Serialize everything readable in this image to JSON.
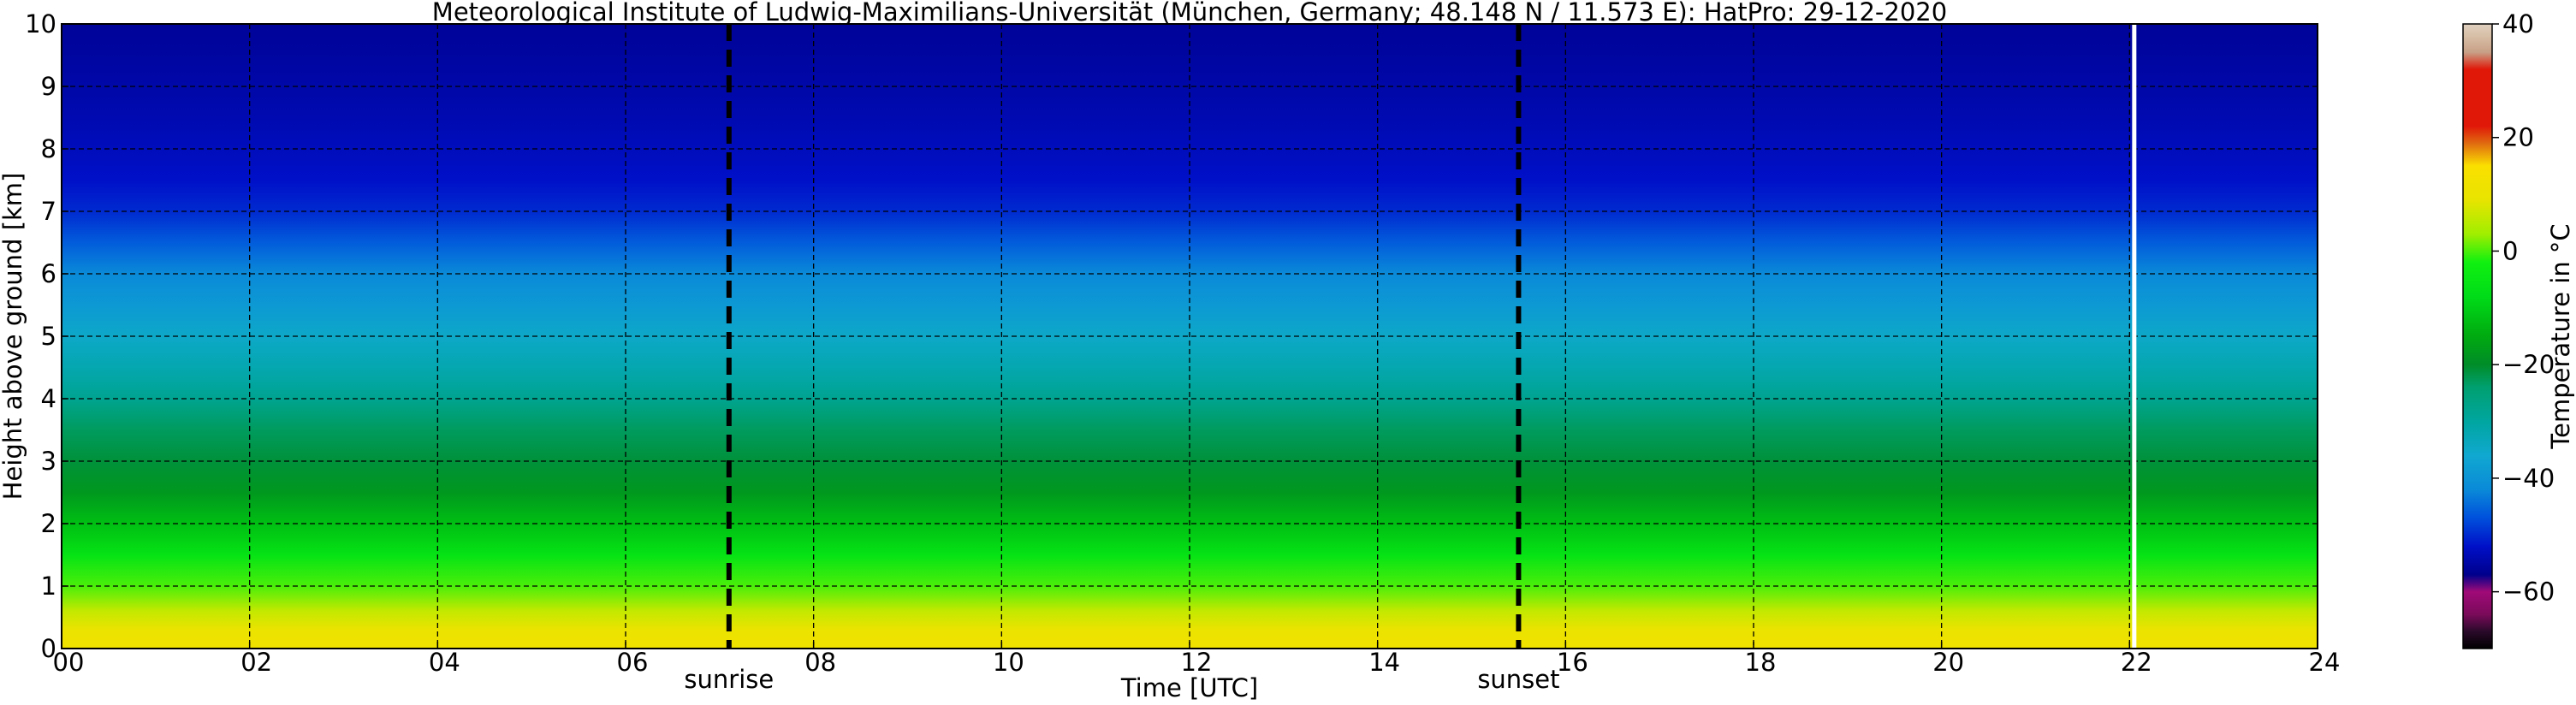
{
  "title": "Meteorological Institute of Ludwig-Maximilians-Universität (München, Germany; 48.148 N / 11.573 E):    HatPro: 29-12-2020",
  "chart_data": {
    "type": "heatmap",
    "title": "Meteorological Institute of Ludwig-Maximilians-Universität (München, Germany; 48.148 N / 11.573 E):    HatPro: 29-12-2020",
    "xlabel": "Time [UTC]",
    "ylabel": "Height above ground [km]",
    "xlim": [
      0,
      24
    ],
    "ylim": [
      0,
      10
    ],
    "x_ticks": [
      0,
      2,
      4,
      6,
      8,
      10,
      12,
      14,
      16,
      18,
      20,
      22,
      24
    ],
    "x_tick_labels": [
      "00",
      "02",
      "04",
      "06",
      "08",
      "10",
      "12",
      "14",
      "16",
      "18",
      "20",
      "22",
      "24"
    ],
    "y_ticks": [
      0,
      1,
      2,
      3,
      4,
      5,
      6,
      7,
      8,
      9,
      10
    ],
    "y_tick_labels": [
      "0",
      "1",
      "2",
      "3",
      "4",
      "5",
      "6",
      "7",
      "8",
      "9",
      "10"
    ],
    "grid": true,
    "events": [
      {
        "label": "sunrise",
        "time": 7.1
      },
      {
        "label": "sunset",
        "time": 15.5
      }
    ],
    "data_gap_time": 22.05,
    "temperature_profile": [
      {
        "height": 0.0,
        "temp": 12
      },
      {
        "height": 0.3,
        "temp": 10
      },
      {
        "height": 0.6,
        "temp": 6
      },
      {
        "height": 1.0,
        "temp": 0
      },
      {
        "height": 1.5,
        "temp": -6
      },
      {
        "height": 2.0,
        "temp": -12
      },
      {
        "height": 2.5,
        "temp": -18
      },
      {
        "height": 3.0,
        "temp": -21
      },
      {
        "height": 3.5,
        "temp": -23
      },
      {
        "height": 4.0,
        "temp": -28
      },
      {
        "height": 4.5,
        "temp": -32
      },
      {
        "height": 5.0,
        "temp": -35
      },
      {
        "height": 5.5,
        "temp": -39
      },
      {
        "height": 6.0,
        "temp": -42
      },
      {
        "height": 6.5,
        "temp": -46
      },
      {
        "height": 7.0,
        "temp": -50
      },
      {
        "height": 7.5,
        "temp": -52
      },
      {
        "height": 8.5,
        "temp": -54
      },
      {
        "height": 10.0,
        "temp": -56
      }
    ],
    "colorbar": {
      "label": "Temperature in °C",
      "range": [
        -70,
        40
      ],
      "ticks": [
        -60,
        -40,
        -20,
        0,
        20,
        40
      ],
      "tick_labels": [
        "−60",
        "−40",
        "−20",
        "0",
        "20",
        "40"
      ],
      "colorscale": [
        {
          "temp": -70,
          "color": "#000000"
        },
        {
          "temp": -67,
          "color": "#2a0a2a"
        },
        {
          "temp": -64,
          "color": "#7a0a5a"
        },
        {
          "temp": -60,
          "color": "#a00a78"
        },
        {
          "temp": -57,
          "color": "#00008c"
        },
        {
          "temp": -52,
          "color": "#0010c8"
        },
        {
          "temp": -47,
          "color": "#0050dc"
        },
        {
          "temp": -42,
          "color": "#0a8ad8"
        },
        {
          "temp": -36,
          "color": "#10a8d0"
        },
        {
          "temp": -30,
          "color": "#00a6a0"
        },
        {
          "temp": -24,
          "color": "#00a070"
        },
        {
          "temp": -20,
          "color": "#008c28"
        },
        {
          "temp": -15,
          "color": "#00aa10"
        },
        {
          "temp": -8,
          "color": "#00dc18"
        },
        {
          "temp": -2,
          "color": "#10f010"
        },
        {
          "temp": 3,
          "color": "#a0ee00"
        },
        {
          "temp": 9,
          "color": "#e8e400"
        },
        {
          "temp": 15,
          "color": "#fae000"
        },
        {
          "temp": 19,
          "color": "#e06a10"
        },
        {
          "temp": 22,
          "color": "#e01808"
        },
        {
          "temp": 32,
          "color": "#e01808"
        },
        {
          "temp": 35,
          "color": "#c8a086"
        },
        {
          "temp": 38,
          "color": "#d8c0a8"
        },
        {
          "temp": 40,
          "color": "#e0d0c0"
        }
      ]
    }
  }
}
